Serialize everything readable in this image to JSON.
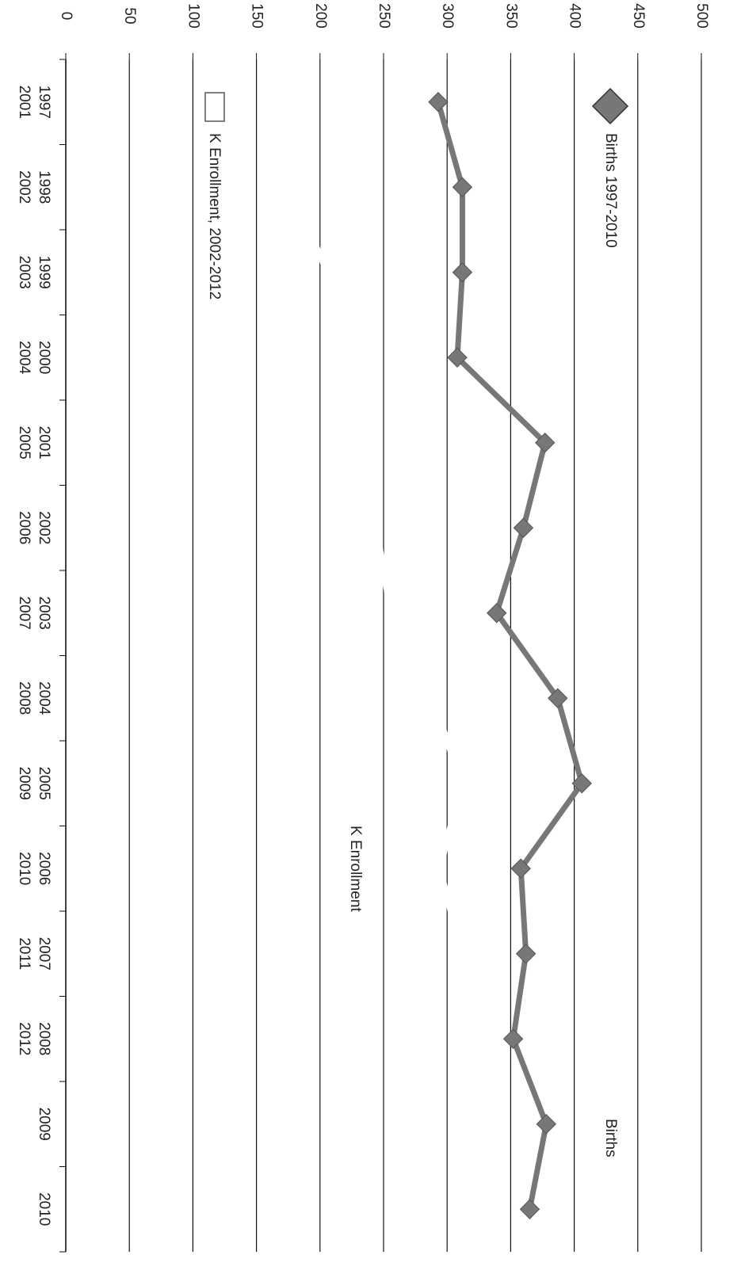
{
  "chart_data": {
    "type": "line",
    "categories": [
      "1997",
      "1998",
      "1999",
      "2000",
      "2001",
      "2002",
      "2003",
      "2004",
      "2005",
      "2006",
      "2007",
      "2008",
      "2009",
      "2010"
    ],
    "categories2": [
      "2001",
      "2002",
      "2003",
      "2004",
      "2005",
      "2006",
      "2007",
      "2008",
      "2009",
      "2010",
      "2011",
      "2012",
      null,
      null
    ],
    "series": [
      {
        "name": "Births 1997-2010",
        "color": "#777777",
        "values": [
          293,
          312,
          312,
          308,
          377,
          360,
          339,
          387,
          406,
          358,
          362,
          352,
          378,
          365
        ]
      },
      {
        "name": "K Enrollment, 2002-2012",
        "color": "#ffffff",
        "values": [
          null,
          180,
          205,
          215,
          230,
          245,
          255,
          290,
          310,
          295,
          310,
          320,
          null,
          null
        ]
      }
    ],
    "annotations": [
      "Births",
      "K Enrollment"
    ],
    "ylim": [
      0,
      500
    ],
    "yticks": [
      0,
      50,
      100,
      150,
      200,
      250,
      300,
      350,
      400,
      450,
      500
    ],
    "grid": true
  }
}
